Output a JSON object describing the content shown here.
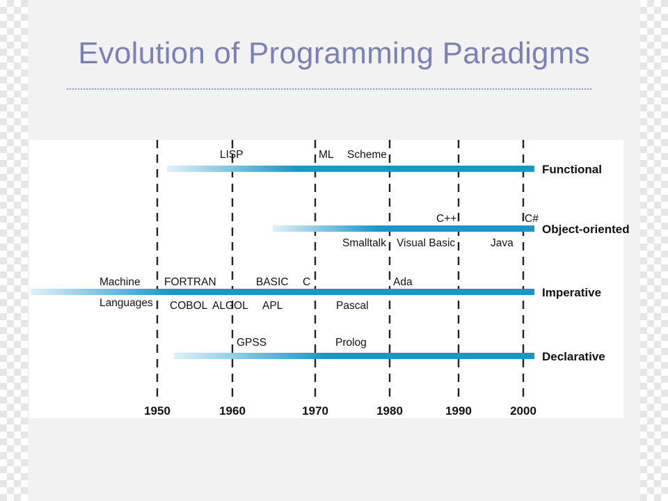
{
  "title": "Evolution of Programming Paradigms",
  "colors": {
    "title": "#7b82b3",
    "bar": "#1b96c8",
    "bar_fade": "#dff1f8",
    "panel": "#ffffff",
    "slide": "#f2f2f2"
  },
  "years": [
    "1950",
    "1960",
    "1970",
    "1980",
    "1990",
    "2000"
  ],
  "paradigms": [
    {
      "name": "Functional",
      "languages_above": [
        "LISP",
        "ML",
        "Scheme"
      ],
      "languages_below": []
    },
    {
      "name": "Object-oriented",
      "languages_above": [
        "C++",
        "C#"
      ],
      "languages_below": [
        "Smalltalk",
        "Visual Basic",
        "Java"
      ]
    },
    {
      "name": "Imperative",
      "languages_above": [
        "Machine",
        "FORTRAN",
        "BASIC",
        "C",
        "Ada"
      ],
      "languages_below": [
        "Languages",
        "COBOL",
        "ALGOL",
        "APL",
        "Pascal"
      ]
    },
    {
      "name": "Declarative",
      "languages_above": [
        "GPSS",
        "Prolog"
      ],
      "languages_below": []
    }
  ]
}
